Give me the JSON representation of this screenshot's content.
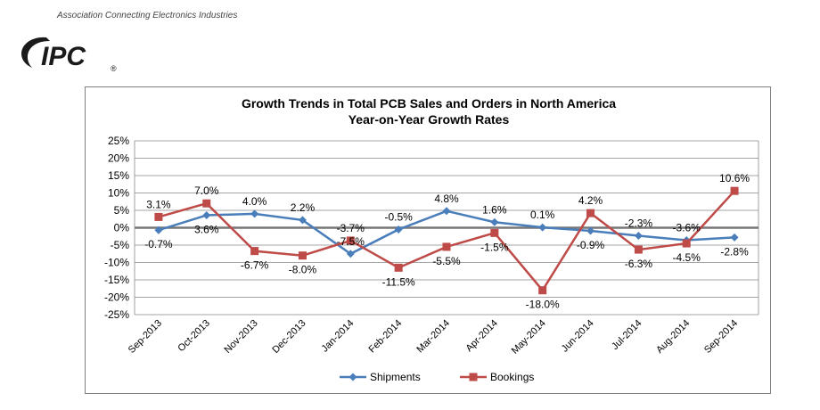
{
  "header": {
    "tagline": "Association Connecting Electronics Industries",
    "logo_text": "IPC",
    "logo_mark": "®"
  },
  "colors": {
    "shipments": "#4a7ebb",
    "bookings": "#be4b48",
    "logo": "#1a1a1a",
    "grid": "#888888"
  },
  "chart_data": {
    "type": "line",
    "title": "Growth Trends in Total PCB Sales and Orders in North America",
    "subtitle": "Year-on-Year Growth Rates",
    "categories": [
      "Sep-2013",
      "Oct-2013",
      "Nov-2013",
      "Dec-2013",
      "Jan-2014",
      "Feb-2014",
      "Mar-2014",
      "Apr-2014",
      "May-2014",
      "Jun-2014",
      "Jul-2014",
      "Aug-2014",
      "Sep-2014"
    ],
    "ylim": [
      -25,
      25
    ],
    "yticks": [
      25,
      20,
      15,
      10,
      5,
      0,
      -5,
      -10,
      -15,
      -20,
      -25
    ],
    "ytick_labels": [
      "25%",
      "20%",
      "15%",
      "10%",
      "5%",
      "0%",
      "-5%",
      "-10%",
      "-15%",
      "-20%",
      "-25%"
    ],
    "grid": true,
    "legend_position": "bottom",
    "series": [
      {
        "name": "Shipments",
        "marker": "diamond",
        "values": [
          -0.7,
          3.6,
          4.0,
          2.2,
          -7.5,
          -0.5,
          4.8,
          1.6,
          0.1,
          -0.9,
          -2.3,
          -3.6,
          -2.8
        ],
        "labels": [
          "-0.7%",
          "3.6%",
          "4.0%",
          "2.2%",
          "-7.5%",
          "-0.5%",
          "4.8%",
          "1.6%",
          "0.1%",
          "-0.9%",
          "-2.3%",
          "-3.6%",
          "-2.8%"
        ]
      },
      {
        "name": "Bookings",
        "marker": "square",
        "values": [
          3.1,
          7.0,
          -6.7,
          -8.0,
          -3.7,
          -11.5,
          -5.5,
          -1.5,
          -18.0,
          4.2,
          -6.3,
          -4.5,
          10.6
        ],
        "labels": [
          "3.1%",
          "7.0%",
          "-6.7%",
          "-8.0%",
          "-3.7%",
          "-11.5%",
          "-5.5%",
          "-1.5%",
          "-18.0%",
          "4.2%",
          "-6.3%",
          "-4.5%",
          "10.6%"
        ]
      }
    ]
  }
}
